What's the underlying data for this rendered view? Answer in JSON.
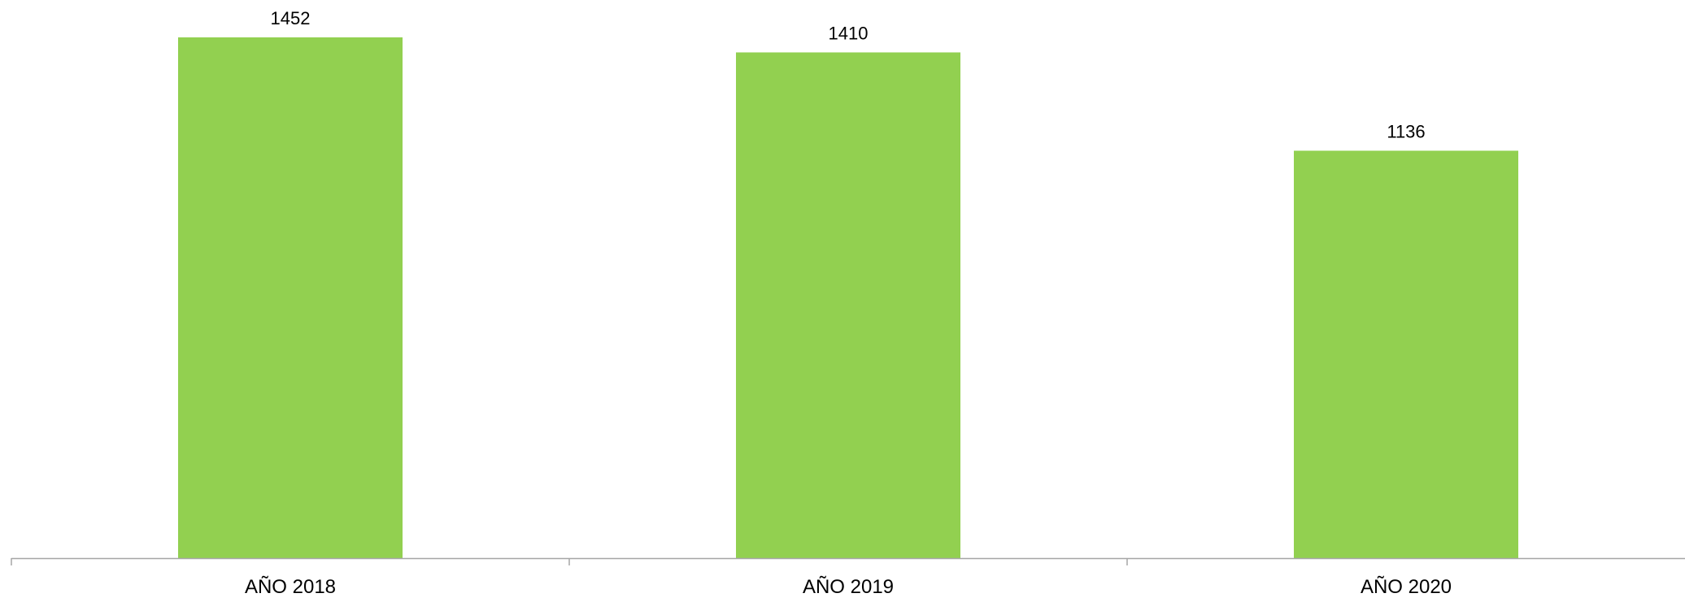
{
  "chart_data": {
    "type": "bar",
    "categories": [
      "AÑO 2018",
      "AÑO 2019",
      "AÑO 2020"
    ],
    "values": [
      1452,
      1410,
      1136
    ],
    "data_labels": [
      "1452",
      "1410",
      "1136"
    ],
    "ylim": [
      0,
      1452
    ],
    "grid": false,
    "y_axis_visible": false,
    "colors": {
      "bar": "#92d050",
      "axis": "#a6a6a6"
    }
  }
}
